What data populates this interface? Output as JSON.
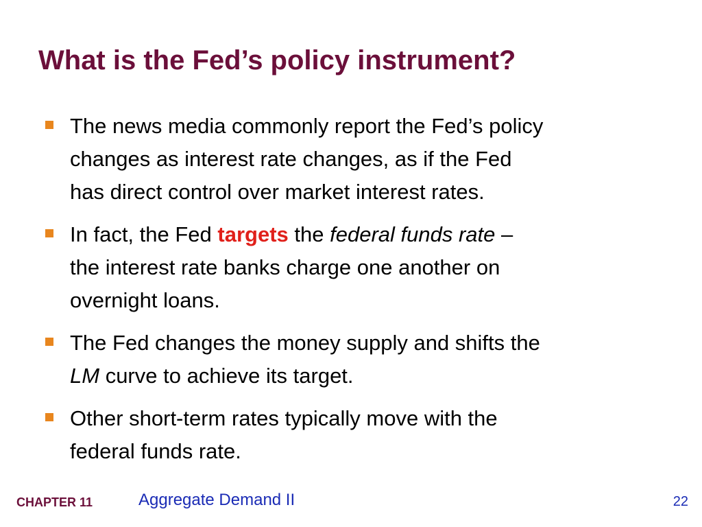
{
  "slide": {
    "title": "What is the Fed’s policy instrument?",
    "bullets": [
      {
        "lines": [
          "The news media commonly report the Fed’s policy",
          "changes as interest rate changes, as if the Fed",
          "has direct control over market interest rates."
        ]
      },
      {
        "line1_prefix": "In fact, the Fed ",
        "line1_emphasis": "targets",
        "line1_mid": " the ",
        "line1_italic": "federal funds rate",
        "line1_suffix": " –",
        "line2": "the interest rate banks charge one another on",
        "line3": "overnight loans."
      },
      {
        "line1": "The Fed changes the money supply and shifts the",
        "line2_italic": "LM",
        "line2_rest": " curve to achieve its target."
      },
      {
        "lines": [
          "Other short-term rates typically move with the",
          "federal funds rate."
        ]
      }
    ]
  },
  "footer": {
    "chapter": "CHAPTER 11",
    "chapter_title": "Aggregate Demand II",
    "page_number": "22"
  },
  "colors": {
    "title": "#6b0f3a",
    "bullet_marker": "#e8861e",
    "emphasis": "#e0201a",
    "footer_text": "#1a2bb5"
  }
}
